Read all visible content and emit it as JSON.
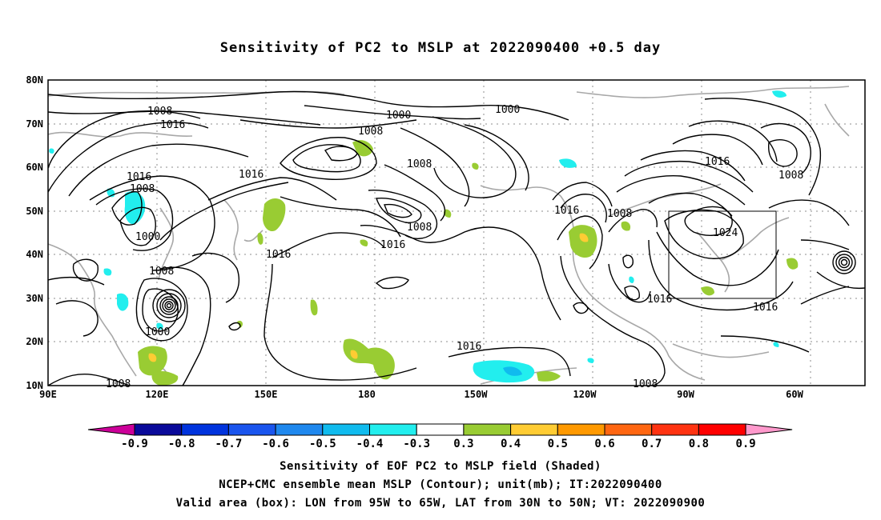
{
  "title": "Sensitivity of PC2 to MSLP at 2022090400 +0.5 day",
  "map": {
    "lon_labels": [
      "90E",
      "120E",
      "150E",
      "180",
      "150W",
      "120W",
      "90W",
      "60W"
    ],
    "lat_labels": [
      "80N",
      "70N",
      "60N",
      "50N",
      "40N",
      "30N",
      "20N",
      "10N"
    ],
    "isobar_labels": [
      "1008",
      "1016",
      "1000",
      "1008",
      "1000",
      "1008",
      "1016",
      "1016",
      "1008",
      "1000",
      "1016",
      "1008",
      "1008",
      "1016",
      "1008",
      "1016",
      "1016",
      "1024",
      "1016",
      "1016",
      "1016",
      "1008",
      "1008",
      "1000",
      "1008"
    ],
    "colors": {
      "contour": "#000000",
      "coast": "#a8a8a8",
      "grid": "#8c8c8c",
      "box": "#000000"
    },
    "valid_box": {
      "lon": [
        "95W",
        "65W"
      ],
      "lat": [
        "30N",
        "50N"
      ]
    }
  },
  "colorbar": {
    "labels": [
      "-0.9",
      "-0.8",
      "-0.7",
      "-0.6",
      "-0.5",
      "-0.4",
      "-0.3",
      "0.3",
      "0.4",
      "0.5",
      "0.6",
      "0.7",
      "0.8",
      "0.9"
    ],
    "colors": [
      "#0a0a9a",
      "#0033dd",
      "#1a55ee",
      "#1f88ee",
      "#10bbee",
      "#22eeee",
      "#ffffff",
      "#99cc33",
      "#ffcc33",
      "#ff9900",
      "#ff6611",
      "#ff3311",
      "#ff0000"
    ],
    "low_tip_color": "#cc0099",
    "high_tip_color": "#ff99cc"
  },
  "captions": [
    "Sensitivity of EOF PC2 to MSLP field (Shaded)",
    "NCEP+CMC ensemble mean MSLP (Contour); unit(mb); IT:2022090400",
    "Valid area (box): LON from 95W to 65W, LAT from 30N to 50N; VT: 2022090900"
  ]
}
